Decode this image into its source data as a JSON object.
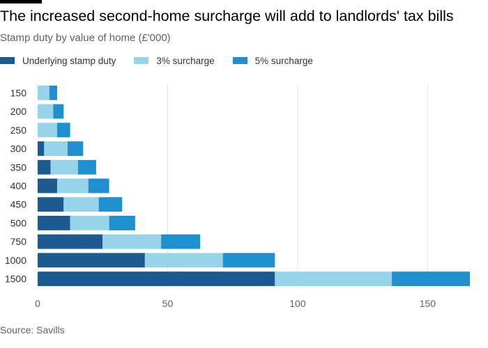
{
  "header": {
    "title": "The increased second-home surcharge will add to landlords' tax bills",
    "subtitle": "Stamp duty by value of home (£'000)"
  },
  "footer": {
    "source": "Source: Savills"
  },
  "colors": {
    "underlying": "#1d5a8f",
    "surcharge3": "#97d4ea",
    "surcharge5": "#1f8fcf",
    "grid": "#e6e2de",
    "text": "#33302e",
    "muted": "#66605c"
  },
  "chart_data": {
    "type": "bar",
    "orientation": "horizontal",
    "stacked": true,
    "title": "The increased second-home surcharge will add to landlords' tax bills",
    "subtitle": "Stamp duty by value of home (£'000)",
    "xlabel": "",
    "ylabel": "",
    "xlim": [
      0,
      170
    ],
    "xticks": [
      0,
      50,
      100,
      150
    ],
    "grid": true,
    "legend_position": "top",
    "categories": [
      "150",
      "200",
      "250",
      "300",
      "350",
      "400",
      "450",
      "500",
      "750",
      "1000",
      "1500"
    ],
    "series": [
      {
        "name": "Underlying stamp duty",
        "values": [
          0,
          0,
          0,
          2.5,
          5,
          7.5,
          10,
          12.5,
          25,
          41.25,
          91.25
        ]
      },
      {
        "name": "3% surcharge",
        "values": [
          4.5,
          6,
          7.5,
          9,
          10.5,
          12,
          13.5,
          15,
          22.5,
          30,
          45
        ]
      },
      {
        "name": "5% surcharge",
        "values": [
          3,
          4,
          5,
          6,
          7,
          8,
          9,
          10,
          15,
          20,
          30
        ]
      }
    ]
  }
}
